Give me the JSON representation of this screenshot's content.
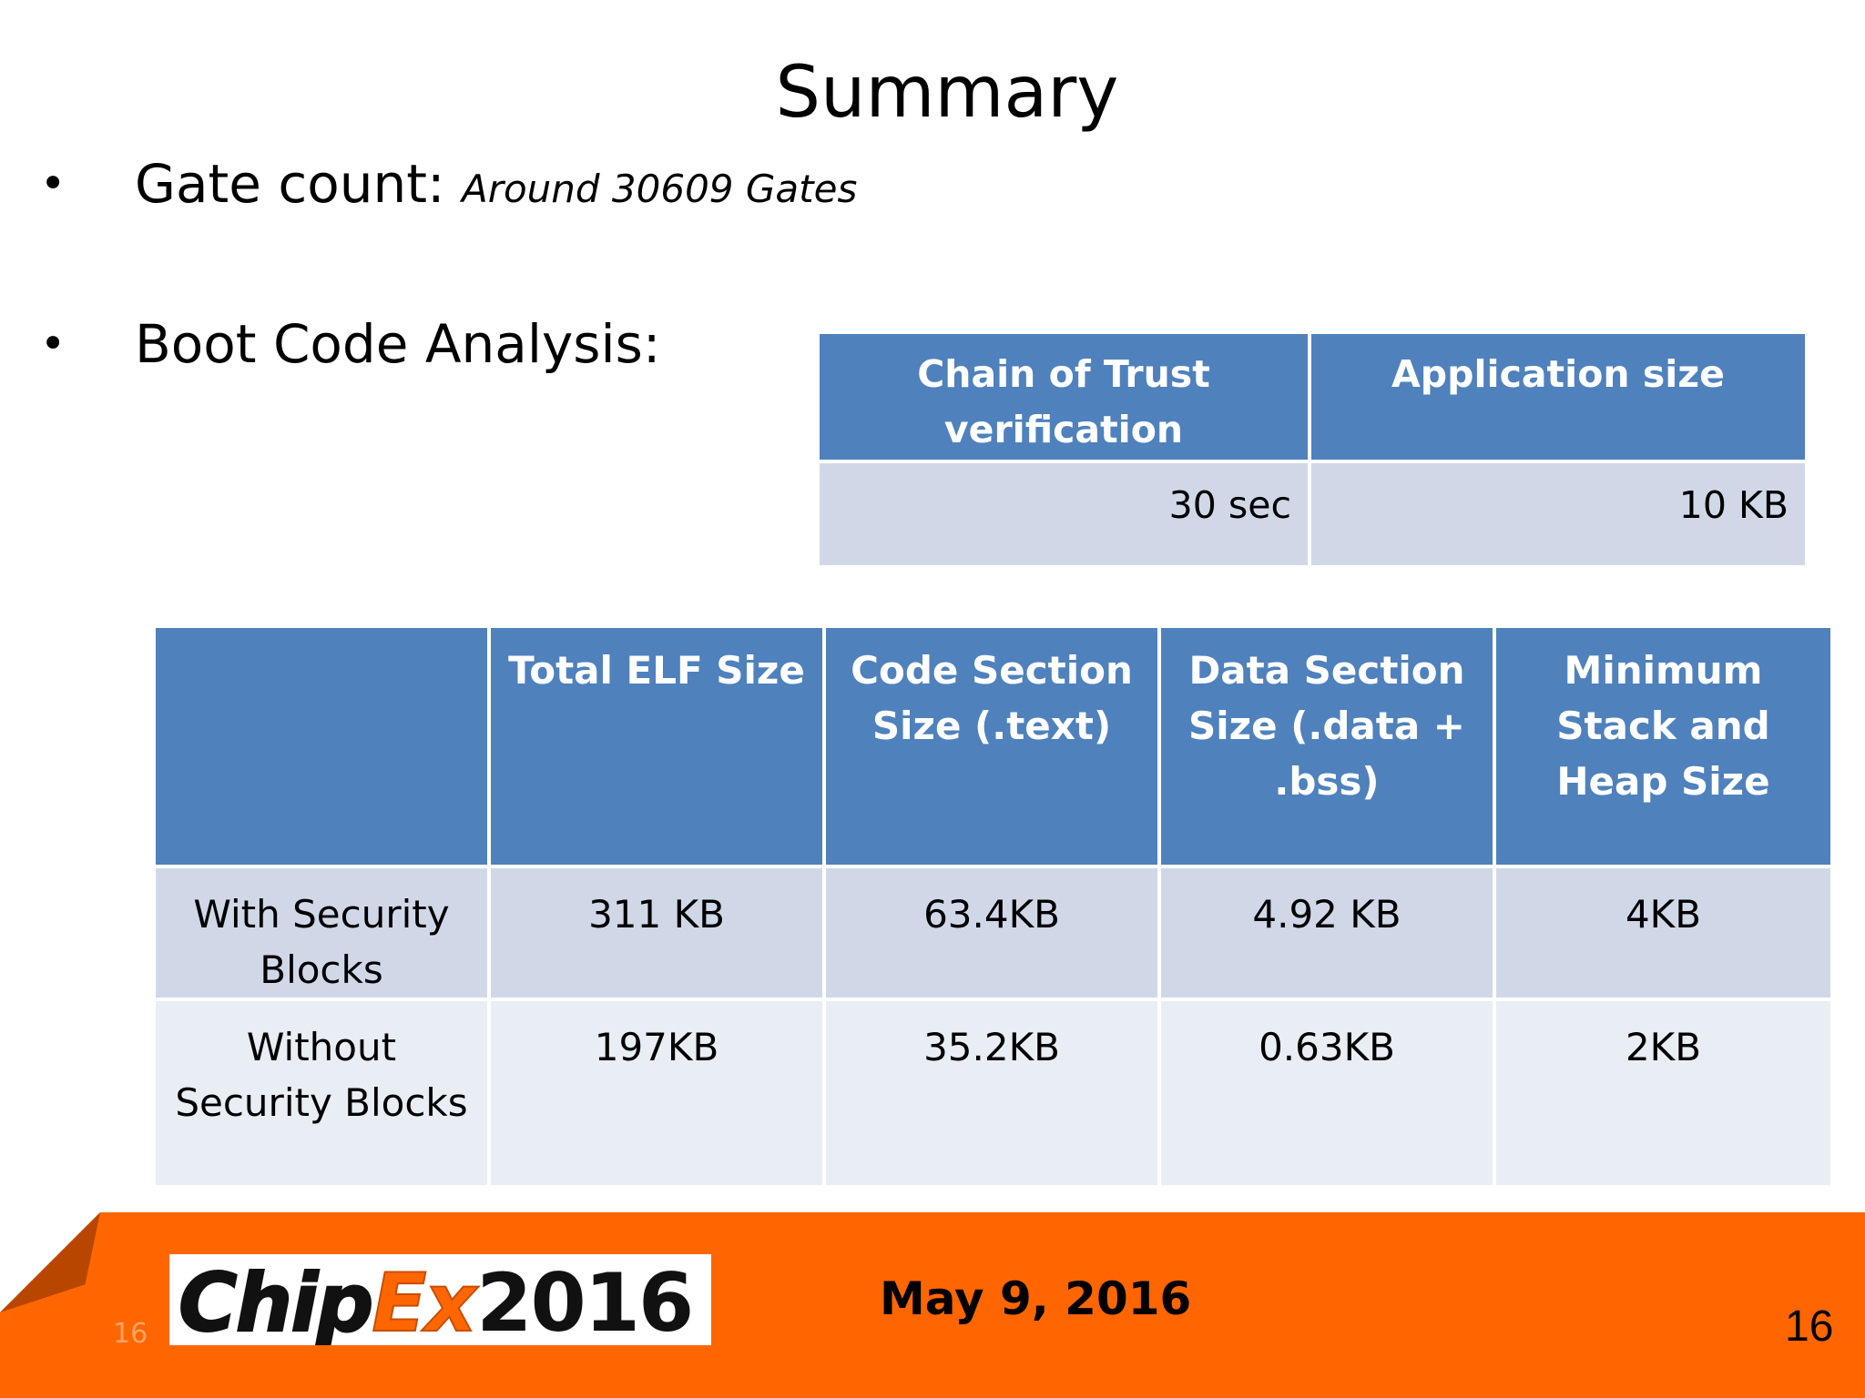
{
  "slide": {
    "title": "Summary",
    "bullets": [
      {
        "label": "Gate count: ",
        "value": "Around 30609 Gates"
      },
      {
        "label": "Boot Code Analysis:",
        "value": ""
      }
    ],
    "bullet_char": "•"
  },
  "trust_table": {
    "headers": [
      "Chain of Trust verification",
      "Application size"
    ],
    "rows": [
      [
        "30 sec",
        "10 KB"
      ]
    ]
  },
  "elf_table": {
    "headers": [
      "",
      "Total ELF Size",
      "Code Section Size (.text)",
      "Data Section Size (.data + .bss)",
      "Minimum Stack and Heap Size"
    ],
    "rows": [
      [
        "With Security Blocks",
        "311 KB",
        "63.4KB",
        "4.92 KB",
        "4KB"
      ],
      [
        "Without Security Blocks",
        "197KB",
        "35.2KB",
        "0.63KB",
        "2KB"
      ]
    ]
  },
  "footer": {
    "logo_text_chip": "Chip",
    "logo_text_ex": "Ex",
    "logo_text_year": "2016",
    "date": "May 9, 2016",
    "page_number": "16",
    "small_page_number": "16",
    "colors": {
      "bar": "#ff6600",
      "logo_orange": "#ff6600",
      "header_blue": "#4f81bd"
    }
  }
}
